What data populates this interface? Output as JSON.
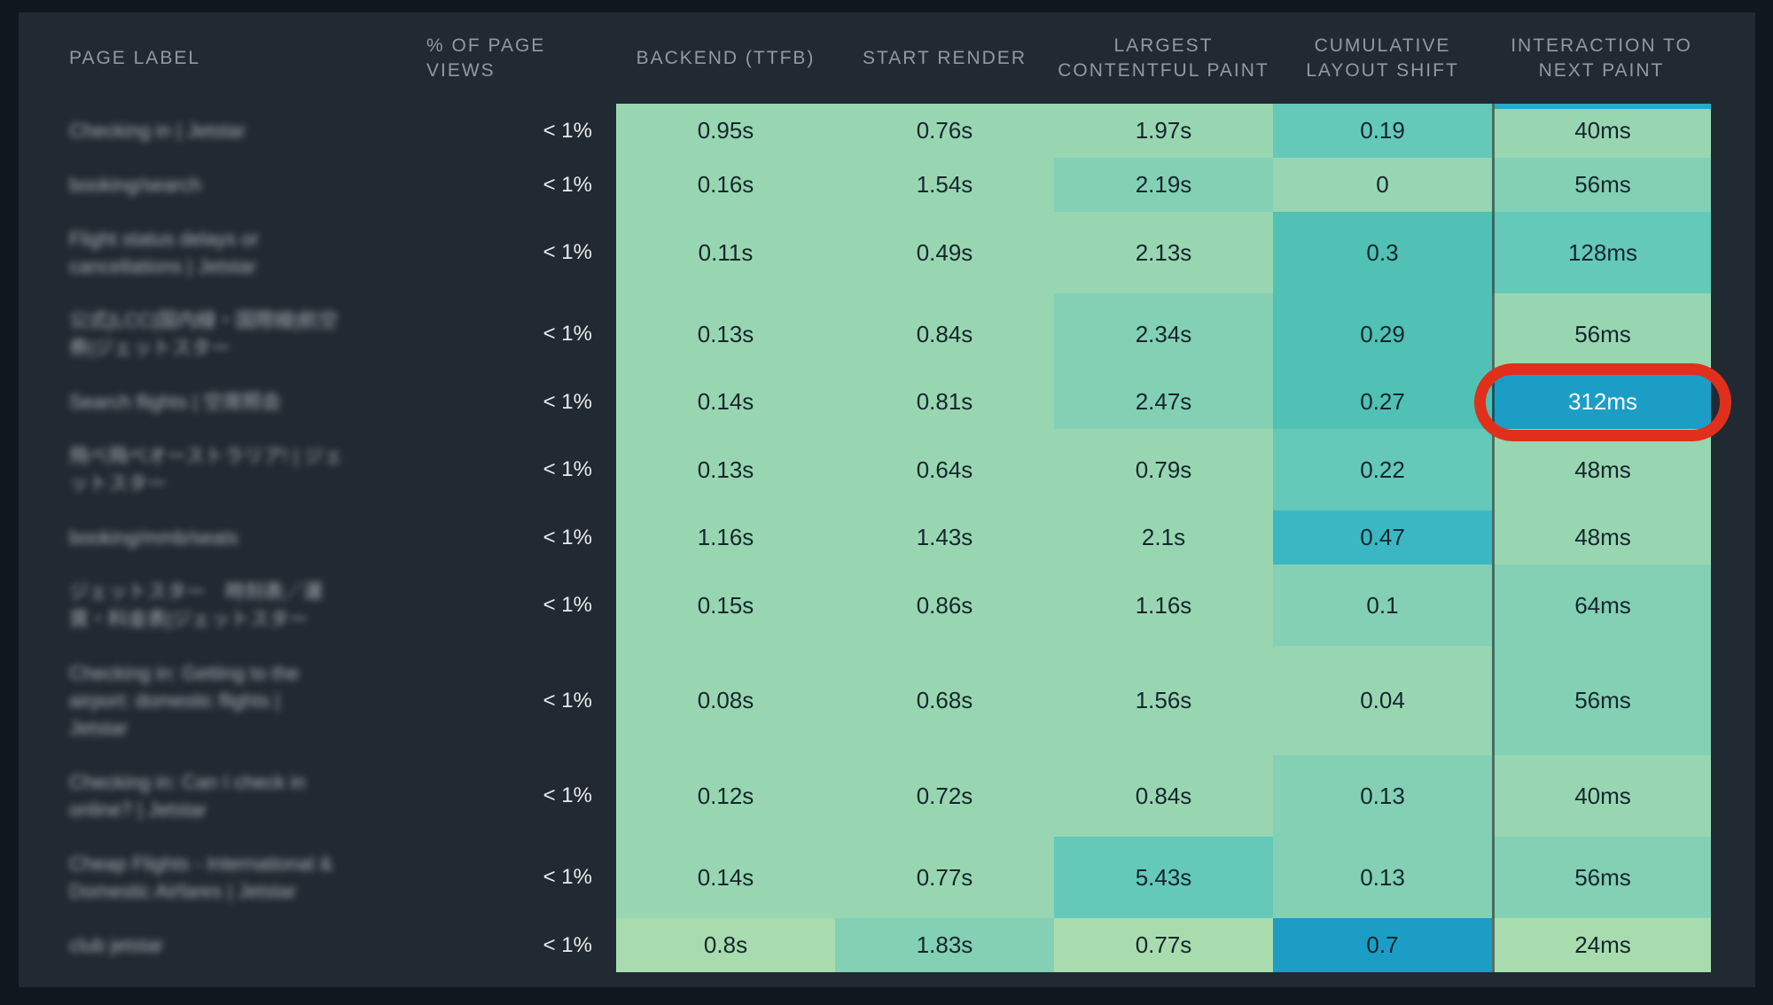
{
  "palette": {
    "g1": "#a8dcae",
    "g2": "#98d6b2",
    "g3": "#83d0b5",
    "t1": "#64c9b9",
    "t2": "#50c1b4",
    "cy": "#3bb7c3",
    "bl": "#1b9dc6"
  },
  "accents": {
    "sort_strip_color": "#2aa8c8",
    "annotation_ring_color": "#e0301c",
    "panel_background": "#212a32",
    "outer_background": "#10171e"
  },
  "header": {
    "columns": [
      {
        "id": "page-label",
        "label": "PAGE LABEL"
      },
      {
        "id": "pct",
        "label": "% OF PAGE VIEWS"
      },
      {
        "id": "ttfb",
        "label": "BACKEND (TTFB)"
      },
      {
        "id": "start-render",
        "label": "START RENDER"
      },
      {
        "id": "lcp",
        "label": "LARGEST CONTENTFUL PAINT"
      },
      {
        "id": "cls",
        "label": "CUMULATIVE LAYOUT SHIFT"
      },
      {
        "id": "inp",
        "label": "INTERACTION TO NEXT PAINT"
      }
    ]
  },
  "rows": [
    {
      "label": "Checking in | Jetstar",
      "pct": "< 1%",
      "cells": [
        {
          "value": "0.95s",
          "tone": "g2"
        },
        {
          "value": "0.76s",
          "tone": "g2"
        },
        {
          "value": "1.97s",
          "tone": "g2"
        },
        {
          "value": "0.19",
          "tone": "t1"
        },
        {
          "value": "40ms",
          "tone": "g2",
          "strip": true
        }
      ]
    },
    {
      "label": "booking/search",
      "pct": "< 1%",
      "cells": [
        {
          "value": "0.16s",
          "tone": "g2"
        },
        {
          "value": "1.54s",
          "tone": "g2"
        },
        {
          "value": "2.19s",
          "tone": "g3"
        },
        {
          "value": "0",
          "tone": "g2"
        },
        {
          "value": "56ms",
          "tone": "g3"
        }
      ]
    },
    {
      "label": "Flight status delays or cancellations | Jetstar",
      "pct": "< 1%",
      "cells": [
        {
          "value": "0.11s",
          "tone": "g2"
        },
        {
          "value": "0.49s",
          "tone": "g2"
        },
        {
          "value": "2.13s",
          "tone": "g2"
        },
        {
          "value": "0.3",
          "tone": "t2"
        },
        {
          "value": "128ms",
          "tone": "t1"
        }
      ]
    },
    {
      "label": "公式|LCC|国内線・国際線|航空券|ジェットスター",
      "pct": "< 1%",
      "cells": [
        {
          "value": "0.13s",
          "tone": "g2"
        },
        {
          "value": "0.84s",
          "tone": "g2"
        },
        {
          "value": "2.34s",
          "tone": "g3"
        },
        {
          "value": "0.29",
          "tone": "t2"
        },
        {
          "value": "56ms",
          "tone": "g2"
        }
      ]
    },
    {
      "label": "Search flights | 空席照会",
      "pct": "< 1%",
      "cells": [
        {
          "value": "0.14s",
          "tone": "g2"
        },
        {
          "value": "0.81s",
          "tone": "g2"
        },
        {
          "value": "2.47s",
          "tone": "g3"
        },
        {
          "value": "0.27",
          "tone": "t2"
        },
        {
          "value": "312ms",
          "tone": "bl",
          "text_light": true,
          "annotated": true
        }
      ]
    },
    {
      "label": "飛べ飛べオーストラリア! | ジェットスター",
      "pct": "< 1%",
      "cells": [
        {
          "value": "0.13s",
          "tone": "g2"
        },
        {
          "value": "0.64s",
          "tone": "g2"
        },
        {
          "value": "0.79s",
          "tone": "g2"
        },
        {
          "value": "0.22",
          "tone": "t1"
        },
        {
          "value": "48ms",
          "tone": "g2"
        }
      ]
    },
    {
      "label": "booking/mmb/seats",
      "pct": "< 1%",
      "cells": [
        {
          "value": "1.16s",
          "tone": "g2"
        },
        {
          "value": "1.43s",
          "tone": "g2"
        },
        {
          "value": "2.1s",
          "tone": "g2"
        },
        {
          "value": "0.47",
          "tone": "cy"
        },
        {
          "value": "48ms",
          "tone": "g2"
        }
      ]
    },
    {
      "label": "ジェットスター　時刻表／運賃・料金表|ジェットスター",
      "pct": "< 1%",
      "cells": [
        {
          "value": "0.15s",
          "tone": "g2"
        },
        {
          "value": "0.86s",
          "tone": "g2"
        },
        {
          "value": "1.16s",
          "tone": "g2"
        },
        {
          "value": "0.1",
          "tone": "g3"
        },
        {
          "value": "64ms",
          "tone": "g3"
        }
      ]
    },
    {
      "label": "Checking in: Getting to the airport: domestic flights | Jetstar",
      "pct": "< 1%",
      "cells": [
        {
          "value": "0.08s",
          "tone": "g2"
        },
        {
          "value": "0.68s",
          "tone": "g2"
        },
        {
          "value": "1.56s",
          "tone": "g2"
        },
        {
          "value": "0.04",
          "tone": "g2"
        },
        {
          "value": "56ms",
          "tone": "g3"
        }
      ]
    },
    {
      "label": "Checking in: Can I check in online? | Jetstar",
      "pct": "< 1%",
      "cells": [
        {
          "value": "0.12s",
          "tone": "g2"
        },
        {
          "value": "0.72s",
          "tone": "g2"
        },
        {
          "value": "0.84s",
          "tone": "g2"
        },
        {
          "value": "0.13",
          "tone": "g3"
        },
        {
          "value": "40ms",
          "tone": "g2"
        }
      ]
    },
    {
      "label": "Cheap Flights - International & Domestic Airfares | Jetstar",
      "pct": "< 1%",
      "cells": [
        {
          "value": "0.14s",
          "tone": "g2"
        },
        {
          "value": "0.77s",
          "tone": "g2"
        },
        {
          "value": "5.43s",
          "tone": "t1"
        },
        {
          "value": "0.13",
          "tone": "g3"
        },
        {
          "value": "56ms",
          "tone": "g3"
        }
      ]
    },
    {
      "label": "club jetstar",
      "pct": "< 1%",
      "cells": [
        {
          "value": "0.8s",
          "tone": "g1"
        },
        {
          "value": "1.83s",
          "tone": "g3"
        },
        {
          "value": "0.77s",
          "tone": "g1"
        },
        {
          "value": "0.7",
          "tone": "bl"
        },
        {
          "value": "24ms",
          "tone": "g1"
        }
      ]
    }
  ]
}
